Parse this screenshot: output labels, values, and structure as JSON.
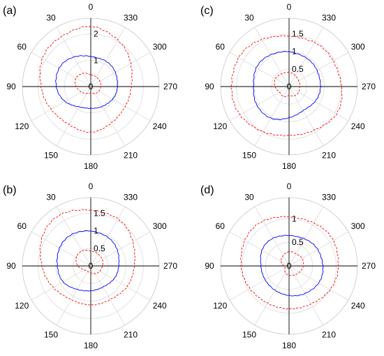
{
  "chart_data": [
    {
      "type": "polar-line",
      "panel_label": "(a)",
      "angle_ticks": [
        "0",
        "30",
        "60",
        "90",
        "120",
        "150",
        "180",
        "210",
        "240",
        "270",
        "300",
        "330"
      ],
      "radial_ticks": [
        0,
        1,
        2
      ],
      "radial_tick_labels": [
        "0",
        "1",
        "2"
      ],
      "rlim": [
        0,
        2.6
      ],
      "angular_direction": "counterclockwise",
      "zero_location": "top",
      "series": [
        {
          "color": "#0000ff",
          "linestyle": "solid",
          "r": [
            1.15,
            1.3,
            1.38,
            1.32,
            1.12,
            0.9,
            0.82,
            0.88,
            0.95,
            1.02,
            1.08,
            1.12
          ]
        },
        {
          "color": "#ff0000",
          "linestyle": "dashed",
          "r": [
            0.45,
            0.58,
            0.65,
            0.55,
            0.42,
            0.3,
            0.25,
            0.3,
            0.36,
            0.38,
            0.4,
            0.42
          ]
        },
        {
          "color": "#ff0000",
          "linestyle": "dashed",
          "r": [
            2.3,
            2.2,
            2.12,
            1.9,
            1.72,
            1.68,
            1.72,
            1.6,
            1.5,
            1.55,
            1.75,
            2.05
          ]
        }
      ]
    },
    {
      "type": "polar-line",
      "panel_label": "(c)",
      "angle_ticks": [
        "0",
        "30",
        "60",
        "90",
        "120",
        "150",
        "180",
        "210",
        "240",
        "270",
        "300",
        "330"
      ],
      "radial_ticks": [
        0,
        0.5,
        1,
        1.5
      ],
      "radial_tick_labels": [
        "0",
        "0.5",
        "1",
        "1.5"
      ],
      "rlim": [
        0,
        1.95
      ],
      "angular_direction": "counterclockwise",
      "zero_location": "top",
      "series": [
        {
          "color": "#0000ff",
          "linestyle": "solid",
          "r": [
            1.0,
            1.05,
            1.07,
            1.02,
            1.05,
            1.05,
            0.88,
            0.8,
            0.85,
            0.9,
            0.92,
            0.95
          ]
        },
        {
          "color": "#ff0000",
          "linestyle": "dashed",
          "r": [
            0.4,
            0.42,
            0.45,
            0.4,
            0.32,
            0.32,
            0.26,
            0.3,
            0.32,
            0.3,
            0.32,
            0.36
          ]
        },
        {
          "color": "#ff0000",
          "linestyle": "dashed",
          "r": [
            1.45,
            1.55,
            1.65,
            1.65,
            1.6,
            1.5,
            1.38,
            1.45,
            1.55,
            1.5,
            1.45,
            1.45
          ]
        }
      ]
    },
    {
      "type": "polar-line",
      "panel_label": "(b)",
      "angle_ticks": [
        "0",
        "30",
        "60",
        "90",
        "120",
        "150",
        "180",
        "210",
        "240",
        "270",
        "300",
        "330"
      ],
      "radial_ticks": [
        0,
        0.5,
        1,
        1.5
      ],
      "radial_tick_labels": [
        "0",
        "0.5",
        "1",
        "1.5"
      ],
      "rlim": [
        0,
        1.95
      ],
      "angular_direction": "counterclockwise",
      "zero_location": "top",
      "series": [
        {
          "color": "#0000ff",
          "linestyle": "solid",
          "r": [
            1.0,
            1.05,
            1.02,
            0.96,
            0.9,
            0.78,
            0.7,
            0.7,
            0.75,
            0.8,
            0.88,
            0.95
          ]
        },
        {
          "color": "#ff0000",
          "linestyle": "dashed",
          "r": [
            0.42,
            0.5,
            0.48,
            0.36,
            0.22,
            0.18,
            0.2,
            0.25,
            0.3,
            0.33,
            0.38,
            0.4
          ]
        },
        {
          "color": "#ff0000",
          "linestyle": "dashed",
          "r": [
            1.6,
            1.7,
            1.6,
            1.4,
            1.22,
            1.12,
            1.1,
            1.12,
            1.18,
            1.25,
            1.38,
            1.55
          ]
        }
      ]
    },
    {
      "type": "polar-line",
      "panel_label": "(d)",
      "angle_ticks": [
        "0",
        "30",
        "60",
        "90",
        "120",
        "150",
        "180",
        "210",
        "240",
        "270",
        "300",
        "330"
      ],
      "radial_ticks": [
        0,
        0.5,
        1
      ],
      "radial_tick_labels": [
        "0",
        "0.5",
        "1"
      ],
      "rlim": [
        0,
        1.45
      ],
      "angular_direction": "counterclockwise",
      "zero_location": "top",
      "series": [
        {
          "color": "#0000ff",
          "linestyle": "solid",
          "r": [
            0.65,
            0.68,
            0.66,
            0.6,
            0.58,
            0.6,
            0.62,
            0.68,
            0.72,
            0.72,
            0.7,
            0.66
          ]
        },
        {
          "color": "#ff0000",
          "linestyle": "dashed",
          "r": [
            0.3,
            0.25,
            0.2,
            0.1,
            0.1,
            0.16,
            0.2,
            0.22,
            0.26,
            0.3,
            0.32,
            0.3
          ]
        },
        {
          "color": "#ff0000",
          "linestyle": "dashed",
          "r": [
            1.05,
            1.1,
            1.08,
            1.02,
            0.95,
            0.92,
            0.9,
            0.94,
            1.0,
            1.05,
            1.08,
            1.05
          ]
        }
      ]
    }
  ]
}
